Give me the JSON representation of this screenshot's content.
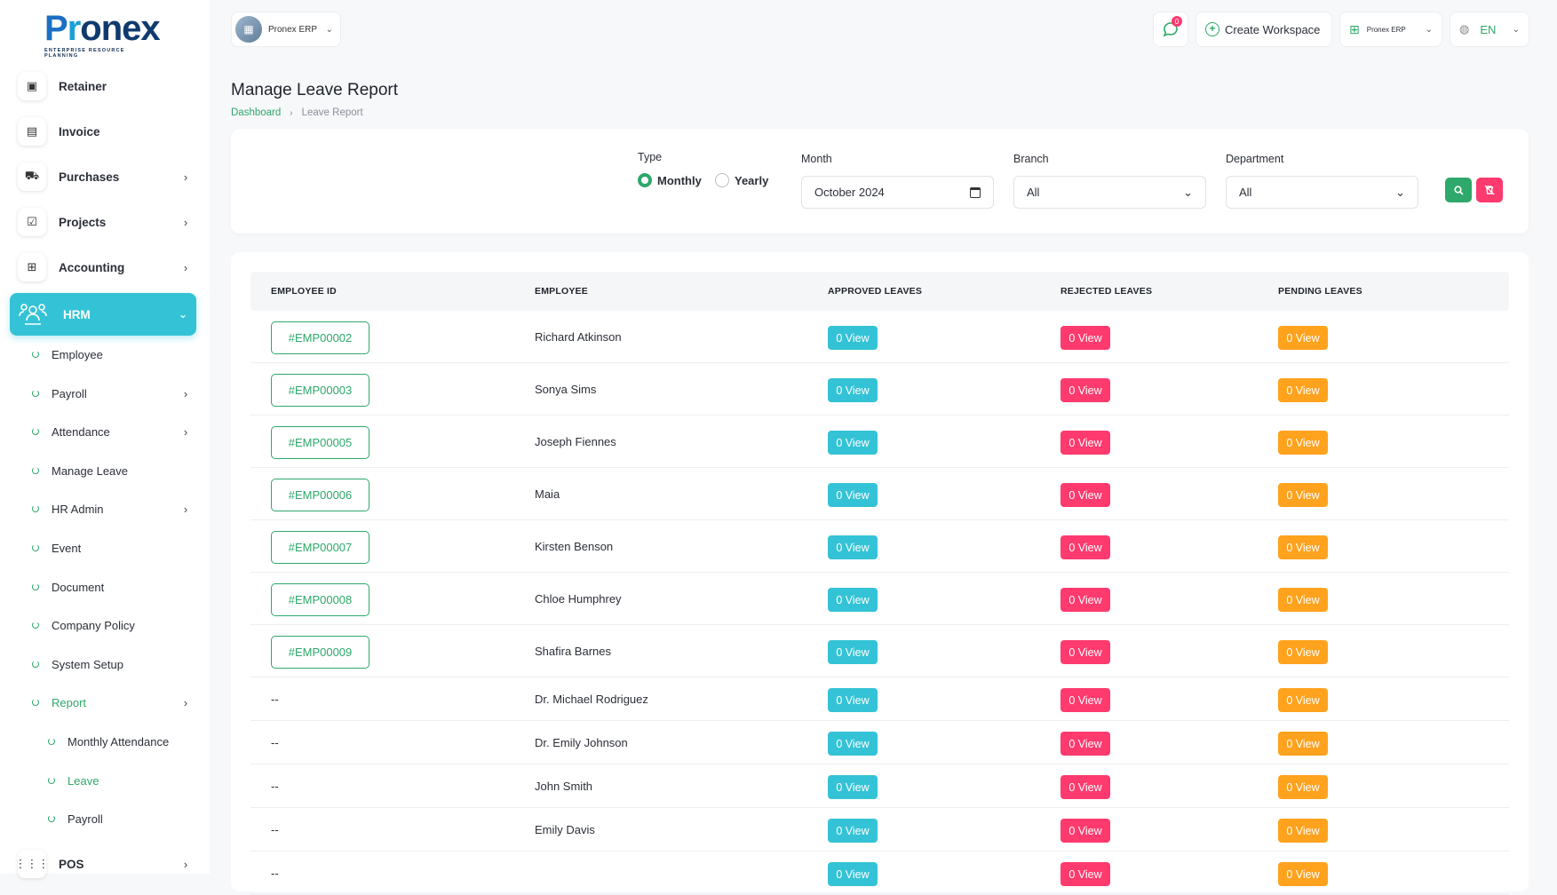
{
  "brand": {
    "logo_text_p": "P",
    "logo_text_r": "r",
    "logo_text_onex": "onex",
    "logo_sub": "ENTERPRISE RESOURCE PLANNING",
    "green": "#2ea86b",
    "cyan": "#34c3d6",
    "red": "#ff3a6e",
    "orange": "#ffa21d"
  },
  "sidebar": {
    "items": [
      {
        "label": "Retainer",
        "icon": "retainer-icon",
        "glyph": "▣",
        "chevron": false
      },
      {
        "label": "Invoice",
        "icon": "invoice-icon",
        "glyph": "▤",
        "chevron": false
      },
      {
        "label": "Purchases",
        "icon": "cart-icon",
        "glyph": "⛟",
        "chevron": true
      },
      {
        "label": "Projects",
        "icon": "projects-icon",
        "glyph": "☑",
        "chevron": true
      },
      {
        "label": "Accounting",
        "icon": "accounting-icon",
        "glyph": "⊞",
        "chevron": true
      }
    ],
    "hrm_label": "HRM",
    "hrm_sub": [
      {
        "label": "Employee",
        "chevron": false
      },
      {
        "label": "Payroll",
        "chevron": true
      },
      {
        "label": "Attendance",
        "chevron": true
      },
      {
        "label": "Manage Leave",
        "chevron": false
      },
      {
        "label": "HR Admin",
        "chevron": true
      },
      {
        "label": "Event",
        "chevron": false
      },
      {
        "label": "Document",
        "chevron": false
      },
      {
        "label": "Company Policy",
        "chevron": false
      },
      {
        "label": "System Setup",
        "chevron": false
      },
      {
        "label": "Report",
        "chevron": true
      }
    ],
    "report_sub": [
      "Monthly Attendance",
      "Leave",
      "Payroll"
    ],
    "pos_label": "POS"
  },
  "topbar": {
    "workspace": "Pronex ERP",
    "notification_count": "0",
    "create_workspace": "Create Workspace",
    "erp_label": "Pronex ERP",
    "language": "EN"
  },
  "header": {
    "title": "Manage Leave Report",
    "breadcrumb_home": "Dashboard",
    "breadcrumb_current": "Leave Report"
  },
  "filters": {
    "type_label": "Type",
    "type_options": [
      "Monthly",
      "Yearly"
    ],
    "type_selected": "Monthly",
    "month_label": "Month",
    "month_value": "October 2024",
    "branch_label": "Branch",
    "branch_value": "All",
    "department_label": "Department",
    "department_value": "All"
  },
  "table": {
    "headers": [
      "EMPLOYEE ID",
      "EMPLOYEE",
      "APPROVED LEAVES",
      "REJECTED LEAVES",
      "PENDING LEAVES"
    ],
    "rows": [
      {
        "id": "#EMP00002",
        "name": "Richard Atkinson",
        "approved": "0 View",
        "rejected": "0 View",
        "pending": "0 View"
      },
      {
        "id": "#EMP00003",
        "name": "Sonya Sims",
        "approved": "0 View",
        "rejected": "0 View",
        "pending": "0 View"
      },
      {
        "id": "#EMP00005",
        "name": "Joseph Fiennes",
        "approved": "0 View",
        "rejected": "0 View",
        "pending": "0 View"
      },
      {
        "id": "#EMP00006",
        "name": "Maia",
        "approved": "0 View",
        "rejected": "0 View",
        "pending": "0 View"
      },
      {
        "id": "#EMP00007",
        "name": "Kirsten Benson",
        "approved": "0 View",
        "rejected": "0 View",
        "pending": "0 View"
      },
      {
        "id": "#EMP00008",
        "name": "Chloe Humphrey",
        "approved": "0 View",
        "rejected": "0 View",
        "pending": "0 View"
      },
      {
        "id": "#EMP00009",
        "name": "Shafira Barnes",
        "approved": "0 View",
        "rejected": "0 View",
        "pending": "0 View"
      },
      {
        "id": "--",
        "name": "Dr. Michael Rodriguez",
        "approved": "0 View",
        "rejected": "0 View",
        "pending": "0 View"
      },
      {
        "id": "--",
        "name": "Dr. Emily Johnson",
        "approved": "0 View",
        "rejected": "0 View",
        "pending": "0 View"
      },
      {
        "id": "--",
        "name": "John Smith",
        "approved": "0 View",
        "rejected": "0 View",
        "pending": "0 View"
      },
      {
        "id": "--",
        "name": "Emily Davis",
        "approved": "0 View",
        "rejected": "0 View",
        "pending": "0 View"
      },
      {
        "id": "--",
        "name": "",
        "approved": "0 View",
        "rejected": "0 View",
        "pending": "0 View"
      }
    ]
  }
}
